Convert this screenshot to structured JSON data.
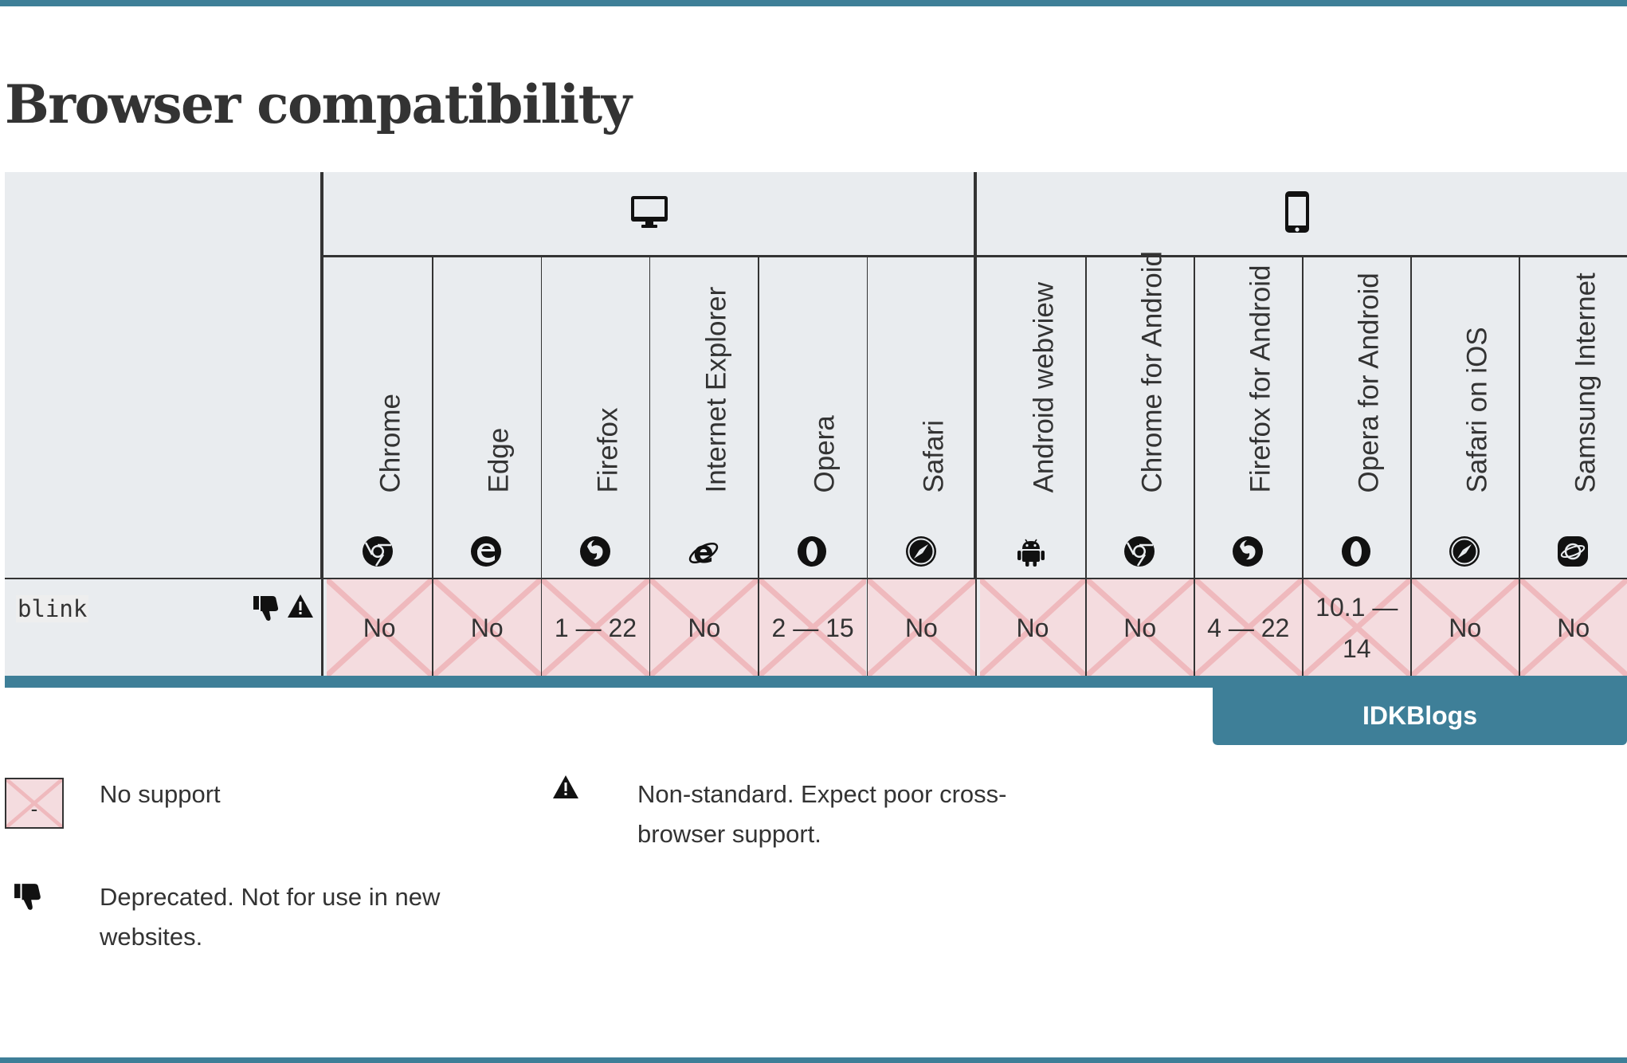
{
  "page": {
    "title": "Browser compatibility",
    "accent_color": "#3e7f98",
    "no_support_color": "#f4dcdf"
  },
  "platforms": [
    {
      "name": "desktop",
      "icon": "desktop-icon"
    },
    {
      "name": "mobile",
      "icon": "mobile-phone-icon"
    }
  ],
  "browsers": [
    {
      "name": "Chrome",
      "icon": "chrome-icon",
      "support": "No",
      "supported": false
    },
    {
      "name": "Edge",
      "icon": "edge-icon",
      "support": "No",
      "supported": false
    },
    {
      "name": "Firefox",
      "icon": "firefox-icon",
      "support": "1 — 22",
      "supported": false
    },
    {
      "name": "Internet Explorer",
      "icon": "internet-explorer-icon",
      "support": "No",
      "supported": false
    },
    {
      "name": "Opera",
      "icon": "opera-icon",
      "support": "2 — 15",
      "supported": false
    },
    {
      "name": "Safari",
      "icon": "safari-icon",
      "support": "No",
      "supported": false
    },
    {
      "name": "Android webview",
      "icon": "android-icon",
      "support": "No",
      "supported": false
    },
    {
      "name": "Chrome for Android",
      "icon": "chrome-icon",
      "support": "No",
      "supported": false
    },
    {
      "name": "Firefox for Android",
      "icon": "firefox-icon",
      "support": "4 — 22",
      "supported": false
    },
    {
      "name": "Opera for Android",
      "icon": "opera-icon",
      "support": "10.1 —\n14",
      "supported": false
    },
    {
      "name": "Safari on iOS",
      "icon": "safari-icon",
      "support": "No",
      "supported": false
    },
    {
      "name": "Samsung Internet",
      "icon": "samsung-internet-icon",
      "support": "No",
      "supported": false
    }
  ],
  "feature": {
    "name": "blink",
    "icons": [
      "thumbs-down-icon",
      "warning-icon"
    ]
  },
  "tag": {
    "label": "IDKBlogs"
  },
  "legend": {
    "swatch_mark": "-",
    "no_support": "No support",
    "non_standard": "Non-standard. Expect poor cross-\nbrowser support.",
    "deprecated": "Deprecated. Not for use in new\nwebsites."
  }
}
